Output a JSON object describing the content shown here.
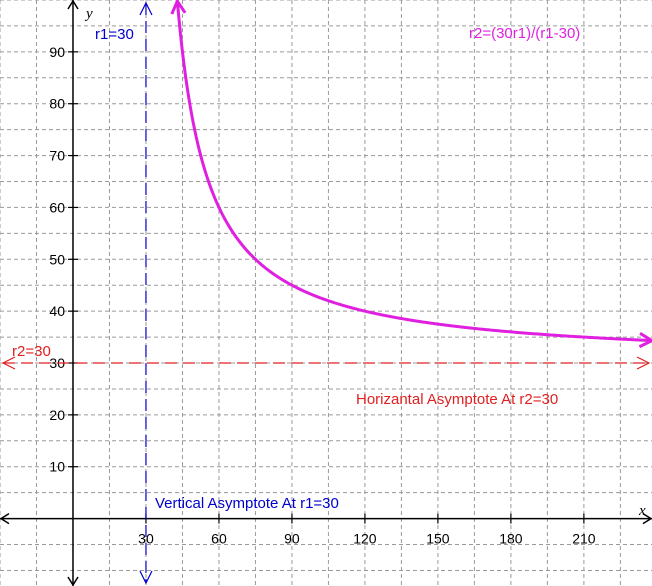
{
  "chart_data": {
    "type": "line",
    "title": "",
    "xlabel": "x",
    "ylabel": "y",
    "xlim": [
      -30,
      238
    ],
    "ylim": [
      -13,
      100
    ],
    "x_ticks": [
      30,
      60,
      90,
      120,
      150,
      180,
      210
    ],
    "y_ticks": [
      10,
      20,
      30,
      40,
      50,
      60,
      70,
      80,
      90
    ],
    "grid": true,
    "series": [
      {
        "name": "r2=(30r1)/(r1-30)",
        "color": "#e020e0",
        "equation": "30x/(x-30)",
        "x_start": 42.9,
        "x_end": 238,
        "arrows": "both"
      }
    ],
    "asymptotes": [
      {
        "orientation": "vertical",
        "value": 30,
        "label": "r1=30",
        "note": "Vertical Asymptote  At r1=30",
        "color": "#0000cc"
      },
      {
        "orientation": "horizontal",
        "value": 30,
        "label": "r2=30",
        "note": "Horizantal Asymptote  At r2=30",
        "color": "#e02020"
      }
    ]
  }
}
